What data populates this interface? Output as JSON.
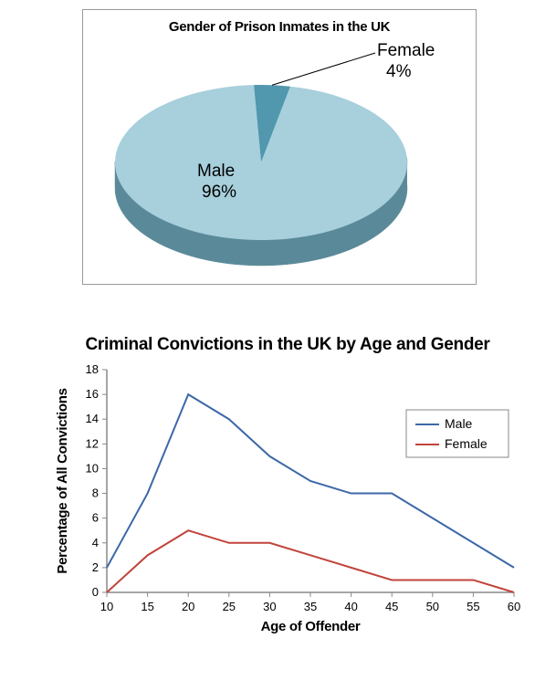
{
  "pie_chart": {
    "type": "pie-3d",
    "title": "Gender of Prison Inmates in the UK",
    "title_fontsize": 15,
    "slices": [
      {
        "label": "Male",
        "value": 96,
        "pct": "96%",
        "color": "#a7cfdc",
        "side_color": "#5a8a99"
      },
      {
        "label": "Female",
        "value": 4,
        "pct": "4%",
        "color": "#5197ae",
        "side_color": "#3b6d7f"
      }
    ],
    "border_color": "#999999",
    "background_color": "#ffffff",
    "label_fontsize": 19,
    "leader_line_color": "#000000"
  },
  "line_chart": {
    "type": "line",
    "title": "Criminal Convictions in the UK by Age and Gender",
    "title_fontsize": 19,
    "xlabel": "Age of Offender",
    "ylabel": "Percentage of All Convictions",
    "label_fontsize": 15,
    "tick_fontsize": 13,
    "xlim": [
      10,
      60
    ],
    "ylim": [
      0,
      18
    ],
    "xtick_step": 5,
    "ytick_step": 2,
    "xticks": [
      10,
      15,
      20,
      25,
      30,
      35,
      40,
      45,
      50,
      55,
      60
    ],
    "yticks": [
      0,
      2,
      4,
      6,
      8,
      10,
      12,
      14,
      16,
      18
    ],
    "series": [
      {
        "name": "Male",
        "color": "#3c68a8",
        "line_width": 2,
        "x": [
          10,
          15,
          20,
          25,
          30,
          35,
          40,
          45,
          50,
          55,
          60
        ],
        "y": [
          2,
          8,
          16,
          14,
          11,
          9,
          8,
          8,
          6,
          4,
          2
        ]
      },
      {
        "name": "Female",
        "color": "#c1443b",
        "line_width": 2,
        "x": [
          10,
          15,
          20,
          25,
          30,
          35,
          40,
          45,
          50,
          55,
          60
        ],
        "y": [
          0,
          3,
          5,
          4,
          4,
          3,
          2,
          1,
          1,
          1,
          0
        ]
      }
    ],
    "axis_color": "#888888",
    "tick_color": "#888888",
    "background_color": "#ffffff",
    "legend_border": "#888888",
    "legend_pos": "right"
  }
}
